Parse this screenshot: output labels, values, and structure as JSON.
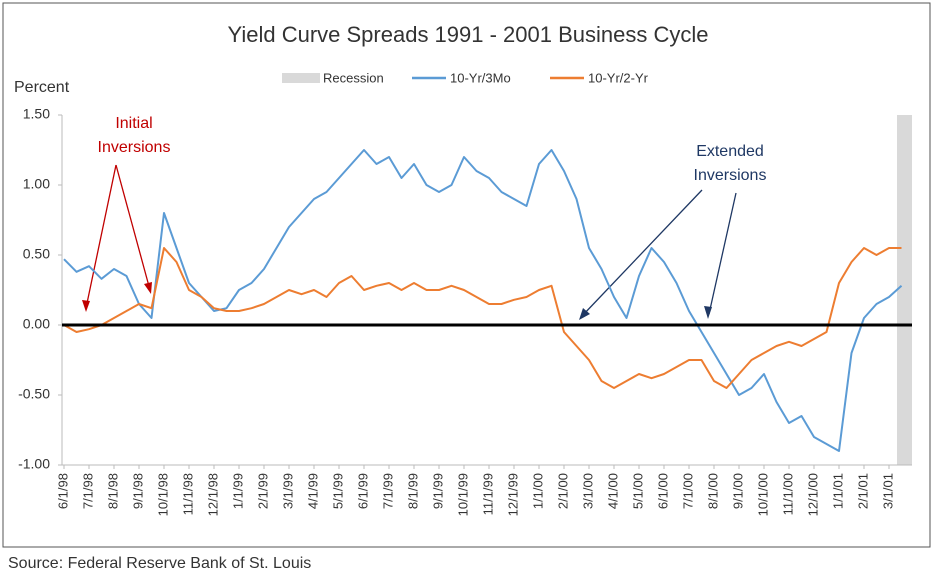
{
  "chart_data": {
    "type": "line",
    "title": "Yield Curve Spreads  1991 - 2001 Business Cycle",
    "y_label": "Percent",
    "source": "Source: Federal Reserve Bank of St. Louis",
    "categories": [
      "6/1/98",
      null,
      "7/1/98",
      null,
      "8/1/98",
      null,
      "9/1/98",
      null,
      "10/1/98",
      null,
      "11/1/98",
      null,
      "12/1/98",
      null,
      "1/1/99",
      null,
      "2/1/99",
      null,
      "3/1/99",
      null,
      "4/1/99",
      null,
      "5/1/99",
      null,
      "6/1/99",
      null,
      "7/1/99",
      null,
      "8/1/99",
      null,
      "9/1/99",
      null,
      "10/1/99",
      null,
      "11/1/99",
      null,
      "12/1/99",
      null,
      "1/1/00",
      null,
      "2/1/00",
      null,
      "3/1/00",
      null,
      "4/1/00",
      null,
      "5/1/00",
      null,
      "6/1/00",
      null,
      "7/1/00",
      null,
      "8/1/00",
      null,
      "9/1/00",
      null,
      "10/1/00",
      null,
      "11/1/00",
      null,
      "12/1/00",
      null,
      "1/1/01",
      null,
      "2/1/01",
      null,
      "3/1/01",
      null
    ],
    "series": [
      {
        "name": "10-Yr/3Mo",
        "color": "#5b9bd5",
        "values": [
          0.47,
          0.38,
          0.42,
          0.33,
          0.4,
          0.35,
          0.15,
          0.05,
          0.8,
          0.55,
          0.3,
          0.2,
          0.1,
          0.12,
          0.25,
          0.3,
          0.4,
          0.55,
          0.7,
          0.8,
          0.9,
          0.95,
          1.05,
          1.15,
          1.25,
          1.15,
          1.2,
          1.05,
          1.15,
          1.0,
          0.95,
          1.0,
          1.2,
          1.1,
          1.05,
          0.95,
          0.9,
          0.85,
          1.15,
          1.25,
          1.1,
          0.9,
          0.55,
          0.4,
          0.2,
          0.05,
          0.35,
          0.55,
          0.45,
          0.3,
          0.1,
          -0.05,
          -0.2,
          -0.35,
          -0.5,
          -0.45,
          -0.35,
          -0.55,
          -0.7,
          -0.65,
          -0.8,
          -0.85,
          -0.9,
          -0.2,
          0.05,
          0.15,
          0.2,
          0.28
        ]
      },
      {
        "name": "10-Yr/2-Yr",
        "color": "#ed7d31",
        "values": [
          0.0,
          -0.05,
          -0.03,
          0.0,
          0.05,
          0.1,
          0.15,
          0.12,
          0.55,
          0.45,
          0.25,
          0.2,
          0.12,
          0.1,
          0.1,
          0.12,
          0.15,
          0.2,
          0.25,
          0.22,
          0.25,
          0.2,
          0.3,
          0.35,
          0.25,
          0.28,
          0.3,
          0.25,
          0.3,
          0.25,
          0.25,
          0.28,
          0.25,
          0.2,
          0.15,
          0.15,
          0.18,
          0.2,
          0.25,
          0.28,
          -0.05,
          -0.15,
          -0.25,
          -0.4,
          -0.45,
          -0.4,
          -0.35,
          -0.38,
          -0.35,
          -0.3,
          -0.25,
          -0.25,
          -0.4,
          -0.45,
          -0.35,
          -0.25,
          -0.2,
          -0.15,
          -0.12,
          -0.15,
          -0.1,
          -0.05,
          0.3,
          0.45,
          0.55,
          0.5,
          0.55,
          0.55
        ]
      }
    ],
    "recession": {
      "name": "Recession",
      "color": "#d9d9d9",
      "from": "3/1/01"
    },
    "ylim": [
      -1,
      1.5
    ],
    "yticks": [
      {
        "value": -1,
        "label": "-1.00"
      },
      {
        "value": -0.5,
        "label": "-0.50"
      },
      {
        "value": 0,
        "label": "0.00"
      },
      {
        "value": 0.5,
        "label": "0.50"
      },
      {
        "value": 1,
        "label": "1.00"
      },
      {
        "value": 1.5,
        "label": "1.50"
      }
    ],
    "annotations": [
      {
        "lines": [
          "Initial",
          "Inversions"
        ],
        "color": "#c00000"
      },
      {
        "lines": [
          "Extended",
          "Inversions"
        ],
        "color": "#1f3864"
      }
    ]
  }
}
